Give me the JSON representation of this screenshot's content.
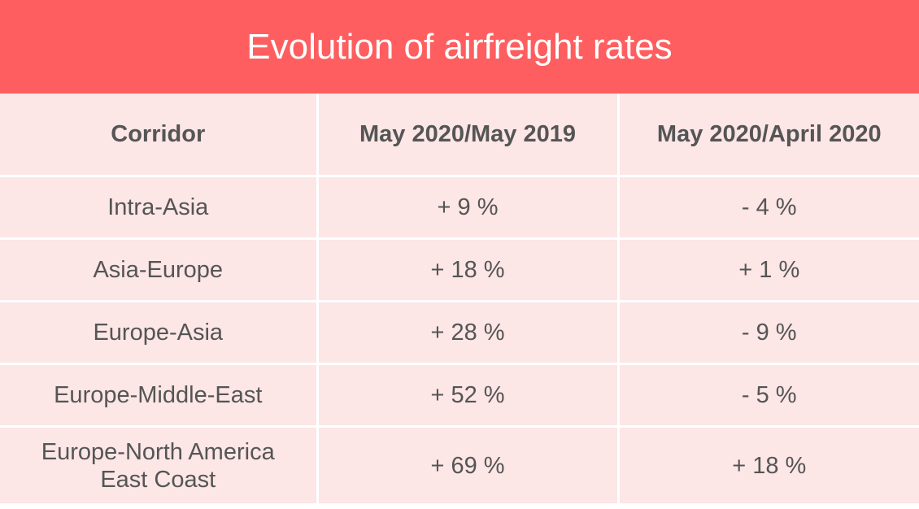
{
  "header": {
    "title": "Evolution of airfreight rates"
  },
  "table": {
    "columns": [
      "Corridor",
      "May 2020/May 2019",
      "May 2020/April 2020"
    ],
    "rows": [
      [
        "Intra-Asia",
        "+ 9 %",
        "- 4 %"
      ],
      [
        "Asia-Europe",
        "+ 18 %",
        "+ 1 %"
      ],
      [
        "Europe-Asia",
        "+ 28 %",
        "- 9 %"
      ],
      [
        "Europe-Middle-East",
        "+ 52 %",
        "- 5 %"
      ],
      [
        "Europe-North America East Coast",
        "+ 69 %",
        "+ 18 %"
      ]
    ]
  }
}
